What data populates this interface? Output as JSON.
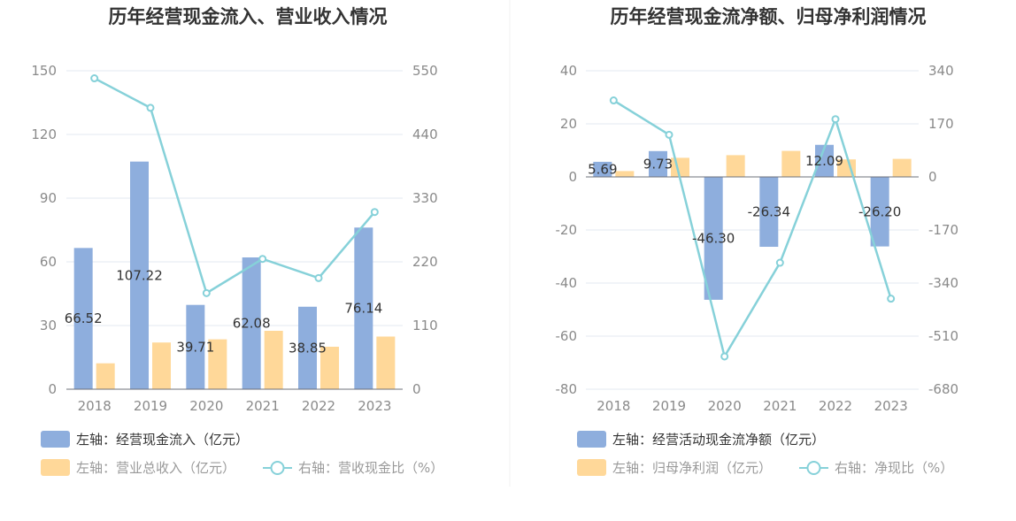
{
  "colors": {
    "primary_bar": "#8eaedd",
    "secondary_bar": "#ffd899",
    "line": "#86d1d9",
    "grid": "#e3e8f2",
    "axis": "#6e7079",
    "legend_secondary_text": "#999999",
    "legend_primary_text": "#333333"
  },
  "chart_data": [
    {
      "type": "bar",
      "title": "历年经营现金流入、营业收入情况",
      "categories": [
        "2018",
        "2019",
        "2020",
        "2021",
        "2022",
        "2023"
      ],
      "left_axis": {
        "min": 0,
        "max": 150,
        "ticks": [
          "150",
          "120",
          "90",
          "60",
          "30",
          "0"
        ]
      },
      "right_axis": {
        "min": 0,
        "max": 550,
        "ticks": [
          "550",
          "440",
          "330",
          "220",
          "110",
          "0"
        ]
      },
      "series": [
        {
          "name": "左轴：经营现金流入（亿元）",
          "kind": "bar",
          "axis": "left",
          "values": [
            66.52,
            107.22,
            39.71,
            62.08,
            38.85,
            76.14
          ],
          "labels": [
            "66.52",
            "107.22",
            "39.71",
            "62.08",
            "38.85",
            "76.14"
          ]
        },
        {
          "name": "左轴：营业总收入（亿元）",
          "kind": "bar",
          "axis": "left",
          "values": [
            12.2,
            22.0,
            23.5,
            27.5,
            20.0,
            24.8
          ]
        },
        {
          "name": "右轴：营收现金比（%）",
          "kind": "line",
          "axis": "right",
          "values": [
            537,
            486,
            166,
            225,
            192,
            306
          ]
        }
      ],
      "grid": true,
      "legend_position": "bottom-left"
    },
    {
      "type": "bar",
      "title": "历年经营现金流净额、归母净利润情况",
      "categories": [
        "2018",
        "2019",
        "2020",
        "2021",
        "2022",
        "2023"
      ],
      "left_axis": {
        "min": -80,
        "max": 40,
        "ticks": [
          "40",
          "20",
          "0",
          "-20",
          "-40",
          "-60",
          "-80"
        ]
      },
      "right_axis": {
        "min": -680,
        "max": 340,
        "ticks": [
          "340",
          "170",
          "0",
          "-170",
          "-340",
          "-510",
          "-680"
        ]
      },
      "series": [
        {
          "name": "左轴：经营活动现金流净额（亿元）",
          "kind": "bar",
          "axis": "left",
          "values": [
            5.69,
            9.73,
            -46.3,
            -26.34,
            12.09,
            -26.2
          ],
          "labels": [
            "5.69",
            "9.73",
            "-46.30",
            "-26.34",
            "12.09",
            "-26.20"
          ]
        },
        {
          "name": "左轴：归母净利润（亿元）",
          "kind": "bar",
          "axis": "left",
          "values": [
            2.2,
            7.2,
            8.2,
            9.8,
            6.6,
            6.8
          ]
        },
        {
          "name": "右轴：净现比（%）",
          "kind": "line",
          "axis": "right",
          "values": [
            245,
            135,
            -575,
            -275,
            185,
            -390
          ]
        }
      ],
      "grid": true,
      "legend_position": "bottom-left"
    }
  ]
}
